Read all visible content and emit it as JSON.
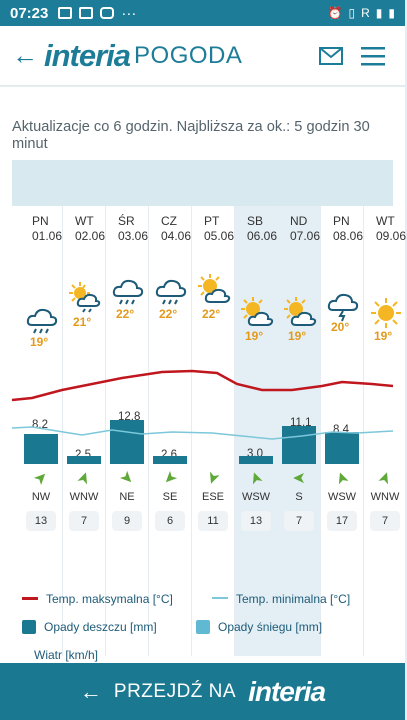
{
  "status": {
    "time": "07:23",
    "dots": "···",
    "right_text": "R"
  },
  "header": {
    "brand": "interia",
    "brand2": "POGODA",
    "back_icon": "arrow-left-icon",
    "mail_icon": "envelope-icon",
    "menu_icon": "hamburger-menu-icon"
  },
  "note": "Aktualizacje co 6 godzin. Najbliższa za ok.: 5 godzin 30 minut",
  "days": [
    {
      "name": "PN",
      "date": "01.06",
      "icon": "cloud-rain",
      "temp": "19°",
      "rain": "8.2",
      "dir": "NW",
      "speed": "13"
    },
    {
      "name": "WT",
      "date": "02.06",
      "icon": "sun-cloud-rain",
      "temp": "21°",
      "rain": "2.5",
      "dir": "WNW",
      "speed": "7"
    },
    {
      "name": "ŚR",
      "date": "03.06",
      "icon": "cloud-rain",
      "temp": "22°",
      "rain": "12.8",
      "dir": "NE",
      "speed": "9"
    },
    {
      "name": "CZ",
      "date": "04.06",
      "icon": "cloud-rain",
      "temp": "22°",
      "rain": "2.6",
      "dir": "SE",
      "speed": "6"
    },
    {
      "name": "PT",
      "date": "05.06",
      "icon": "sun-cloud",
      "temp": "22°",
      "rain": "",
      "dir": "ESE",
      "speed": "11"
    },
    {
      "name": "SB",
      "date": "06.06",
      "icon": "sun-cloud",
      "temp": "19°",
      "rain": "3.0",
      "dir": "WSW",
      "speed": "13"
    },
    {
      "name": "ND",
      "date": "07.06",
      "icon": "sun-cloud",
      "temp": "19°",
      "rain": "11.1",
      "dir": "S",
      "speed": "7"
    },
    {
      "name": "PN",
      "date": "08.06",
      "icon": "cloud-storm",
      "temp": "20°",
      "rain": "8.4",
      "dir": "WSW",
      "speed": "17"
    },
    {
      "name": "WT",
      "date": "09.06",
      "icon": "sun",
      "temp": "19°",
      "rain": "",
      "dir": "WNW",
      "speed": "7"
    }
  ],
  "legend": {
    "max": "Temp. maksymalna [°C]",
    "min": "Temp. minimalna [°C]",
    "rain": "Opady deszczu [mm]",
    "snow": "Opady śniegu [mm]",
    "wind": "Wiatr [km/h]"
  },
  "bottom": {
    "label": "PRZEJDŹ NA",
    "logo": "interia"
  },
  "colors": {
    "brand": "#1d7d99",
    "rain_bar": "#1a7891",
    "max_line": "#c0161e",
    "min_line": "#7cc7d9",
    "temp_text": "#e39a1b",
    "wind_arrow": "#5fa83a"
  }
}
